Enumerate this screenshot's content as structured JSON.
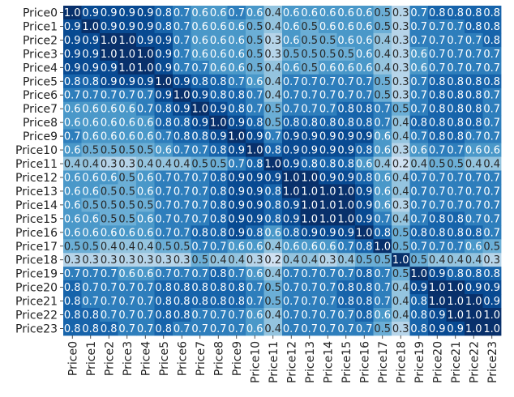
{
  "chart_data": {
    "type": "heatmap",
    "title": "",
    "xlabel": "",
    "ylabel": "",
    "colormap": "Blues",
    "value_range": [
      0,
      1
    ],
    "colorbar": false,
    "annotated": true,
    "labels": [
      "Price0",
      "Price1",
      "Price2",
      "Price3",
      "Price4",
      "Price5",
      "Price6",
      "Price7",
      "Price8",
      "Price9",
      "Price10",
      "Price11",
      "Price12",
      "Price13",
      "Price14",
      "Price15",
      "Price16",
      "Price17",
      "Price18",
      "Price19",
      "Price20",
      "Price21",
      "Price22",
      "Price23"
    ],
    "values": [
      [
        1.0,
        0.9,
        0.9,
        0.9,
        0.9,
        0.8,
        0.7,
        0.6,
        0.6,
        0.7,
        0.6,
        0.4,
        0.6,
        0.6,
        0.6,
        0.6,
        0.6,
        0.5,
        0.3,
        0.7,
        0.8,
        0.8,
        0.8,
        0.8
      ],
      [
        0.9,
        1.0,
        0.9,
        0.9,
        0.9,
        0.8,
        0.7,
        0.6,
        0.6,
        0.6,
        0.5,
        0.4,
        0.6,
        0.5,
        0.6,
        0.6,
        0.6,
        0.5,
        0.3,
        0.7,
        0.7,
        0.7,
        0.8,
        0.8
      ],
      [
        0.9,
        0.9,
        1.0,
        1.0,
        0.9,
        0.9,
        0.7,
        0.6,
        0.6,
        0.6,
        0.5,
        0.3,
        0.6,
        0.5,
        0.5,
        0.6,
        0.6,
        0.4,
        0.3,
        0.7,
        0.7,
        0.7,
        0.7,
        0.8
      ],
      [
        0.9,
        0.9,
        1.0,
        1.0,
        1.0,
        0.9,
        0.7,
        0.6,
        0.6,
        0.6,
        0.5,
        0.3,
        0.5,
        0.5,
        0.5,
        0.5,
        0.6,
        0.4,
        0.3,
        0.6,
        0.7,
        0.7,
        0.7,
        0.7
      ],
      [
        0.9,
        0.9,
        0.9,
        1.0,
        1.0,
        0.9,
        0.7,
        0.7,
        0.6,
        0.6,
        0.5,
        0.4,
        0.6,
        0.5,
        0.6,
        0.6,
        0.6,
        0.4,
        0.3,
        0.6,
        0.7,
        0.7,
        0.7,
        0.7
      ],
      [
        0.8,
        0.8,
        0.9,
        0.9,
        0.9,
        1.0,
        0.9,
        0.8,
        0.8,
        0.7,
        0.6,
        0.4,
        0.7,
        0.7,
        0.7,
        0.7,
        0.7,
        0.5,
        0.3,
        0.7,
        0.8,
        0.8,
        0.8,
        0.8
      ],
      [
        0.7,
        0.7,
        0.7,
        0.7,
        0.7,
        0.9,
        1.0,
        0.9,
        0.8,
        0.8,
        0.7,
        0.4,
        0.7,
        0.7,
        0.7,
        0.7,
        0.7,
        0.5,
        0.3,
        0.7,
        0.8,
        0.8,
        0.8,
        0.7
      ],
      [
        0.6,
        0.6,
        0.6,
        0.6,
        0.7,
        0.8,
        0.9,
        1.0,
        0.9,
        0.8,
        0.7,
        0.5,
        0.7,
        0.7,
        0.7,
        0.8,
        0.8,
        0.7,
        0.5,
        0.7,
        0.8,
        0.8,
        0.8,
        0.7
      ],
      [
        0.6,
        0.6,
        0.6,
        0.6,
        0.6,
        0.8,
        0.8,
        0.9,
        1.0,
        0.9,
        0.8,
        0.5,
        0.8,
        0.8,
        0.8,
        0.8,
        0.8,
        0.7,
        0.4,
        0.8,
        0.8,
        0.8,
        0.8,
        0.7
      ],
      [
        0.7,
        0.6,
        0.6,
        0.6,
        0.6,
        0.7,
        0.8,
        0.8,
        0.9,
        1.0,
        0.9,
        0.7,
        0.9,
        0.9,
        0.9,
        0.9,
        0.9,
        0.6,
        0.4,
        0.7,
        0.8,
        0.8,
        0.7,
        0.7
      ],
      [
        0.6,
        0.5,
        0.5,
        0.5,
        0.5,
        0.6,
        0.7,
        0.7,
        0.8,
        0.9,
        1.0,
        0.8,
        0.9,
        0.9,
        0.9,
        0.9,
        0.8,
        0.6,
        0.3,
        0.6,
        0.7,
        0.7,
        0.6,
        0.6
      ],
      [
        0.4,
        0.4,
        0.3,
        0.3,
        0.4,
        0.4,
        0.4,
        0.5,
        0.5,
        0.7,
        0.8,
        1.0,
        0.9,
        0.8,
        0.8,
        0.8,
        0.6,
        0.4,
        0.2,
        0.4,
        0.5,
        0.5,
        0.4,
        0.4
      ],
      [
        0.6,
        0.6,
        0.6,
        0.5,
        0.6,
        0.7,
        0.7,
        0.7,
        0.8,
        0.9,
        0.9,
        0.9,
        1.0,
        1.0,
        0.9,
        0.9,
        0.8,
        0.6,
        0.4,
        0.7,
        0.7,
        0.7,
        0.7,
        0.7
      ],
      [
        0.6,
        0.6,
        0.5,
        0.5,
        0.6,
        0.7,
        0.7,
        0.7,
        0.8,
        0.9,
        0.9,
        0.8,
        1.0,
        1.0,
        1.0,
        1.0,
        0.9,
        0.6,
        0.4,
        0.7,
        0.7,
        0.7,
        0.7,
        0.7
      ],
      [
        0.6,
        0.5,
        0.5,
        0.5,
        0.5,
        0.7,
        0.7,
        0.7,
        0.8,
        0.9,
        0.9,
        0.8,
        0.9,
        1.0,
        1.0,
        1.0,
        0.9,
        0.6,
        0.3,
        0.7,
        0.7,
        0.7,
        0.7,
        0.7
      ],
      [
        0.6,
        0.6,
        0.5,
        0.5,
        0.6,
        0.7,
        0.7,
        0.7,
        0.8,
        0.9,
        0.9,
        0.8,
        0.9,
        1.0,
        1.0,
        1.0,
        0.9,
        0.7,
        0.4,
        0.7,
        0.8,
        0.8,
        0.7,
        0.7
      ],
      [
        0.6,
        0.6,
        0.6,
        0.6,
        0.6,
        0.7,
        0.7,
        0.8,
        0.8,
        0.9,
        0.8,
        0.6,
        0.8,
        0.9,
        0.9,
        0.9,
        1.0,
        0.8,
        0.5,
        0.8,
        0.8,
        0.8,
        0.8,
        0.7
      ],
      [
        0.5,
        0.5,
        0.4,
        0.4,
        0.4,
        0.5,
        0.5,
        0.7,
        0.7,
        0.6,
        0.6,
        0.4,
        0.6,
        0.6,
        0.6,
        0.7,
        0.8,
        1.0,
        0.5,
        0.7,
        0.7,
        0.7,
        0.6,
        0.5
      ],
      [
        0.3,
        0.3,
        0.3,
        0.3,
        0.3,
        0.3,
        0.3,
        0.5,
        0.4,
        0.4,
        0.3,
        0.2,
        0.4,
        0.4,
        0.3,
        0.4,
        0.5,
        0.5,
        1.0,
        0.5,
        0.4,
        0.4,
        0.4,
        0.3
      ],
      [
        0.7,
        0.7,
        0.7,
        0.6,
        0.6,
        0.7,
        0.7,
        0.7,
        0.8,
        0.7,
        0.6,
        0.4,
        0.7,
        0.7,
        0.7,
        0.7,
        0.8,
        0.7,
        0.5,
        1.0,
        0.9,
        0.8,
        0.8,
        0.8
      ],
      [
        0.8,
        0.7,
        0.7,
        0.7,
        0.7,
        0.8,
        0.8,
        0.8,
        0.8,
        0.8,
        0.7,
        0.5,
        0.7,
        0.7,
        0.7,
        0.8,
        0.8,
        0.7,
        0.4,
        0.9,
        1.0,
        1.0,
        0.9,
        0.9
      ],
      [
        0.8,
        0.7,
        0.7,
        0.7,
        0.7,
        0.8,
        0.8,
        0.8,
        0.8,
        0.8,
        0.7,
        0.5,
        0.7,
        0.7,
        0.7,
        0.8,
        0.8,
        0.7,
        0.4,
        0.8,
        1.0,
        1.0,
        1.0,
        0.9
      ],
      [
        0.8,
        0.8,
        0.7,
        0.7,
        0.7,
        0.8,
        0.8,
        0.7,
        0.7,
        0.7,
        0.6,
        0.4,
        0.7,
        0.7,
        0.7,
        0.7,
        0.8,
        0.6,
        0.4,
        0.8,
        0.9,
        1.0,
        1.0,
        1.0
      ],
      [
        0.8,
        0.8,
        0.8,
        0.7,
        0.7,
        0.8,
        0.7,
        0.7,
        0.7,
        0.7,
        0.6,
        0.4,
        0.7,
        0.7,
        0.7,
        0.7,
        0.7,
        0.5,
        0.3,
        0.8,
        0.9,
        0.9,
        1.0,
        1.0
      ]
    ]
  }
}
